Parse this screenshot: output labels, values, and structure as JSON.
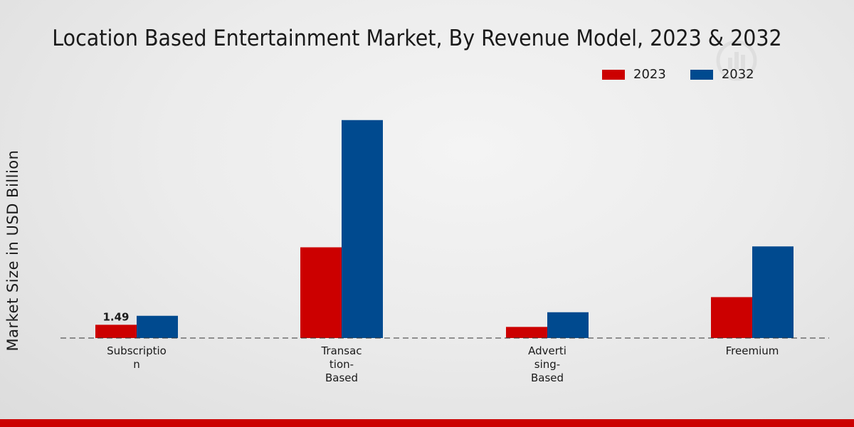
{
  "chart_data": {
    "type": "bar",
    "title": "Location Based Entertainment Market, By Revenue Model, 2023 & 2032",
    "ylabel": "Market Size in USD Billion",
    "xlabel": "",
    "categories": [
      "Subscriptio\nn",
      "Transac\ntion-\nBased",
      "Adverti\nsing-\nBased",
      "Freemium"
    ],
    "series": [
      {
        "name": "2023",
        "color": "#cc0000",
        "values": [
          1.49,
          10.2,
          1.25,
          4.6
        ]
      },
      {
        "name": "2032",
        "color": "#004a8f",
        "values": [
          2.5,
          24.5,
          2.9,
          10.3
        ]
      }
    ],
    "data_labels": [
      {
        "series": 0,
        "index": 0,
        "text": "1.49"
      }
    ],
    "ylim": [
      0,
      30
    ],
    "grid": false,
    "legend_position": "top-right"
  }
}
